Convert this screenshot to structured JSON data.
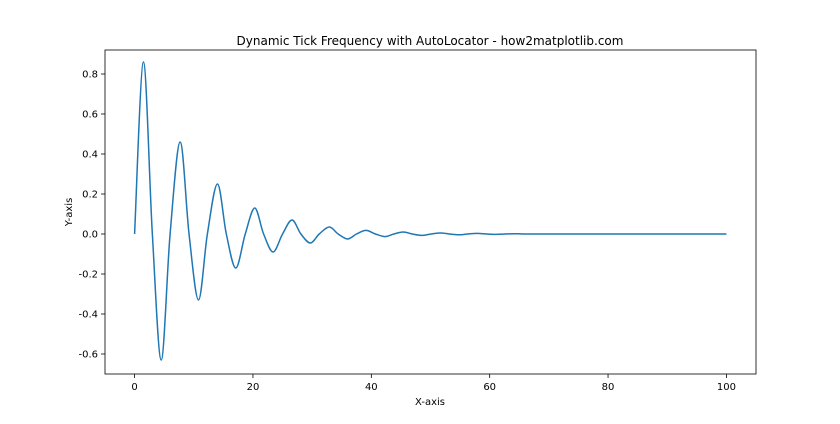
{
  "chart_data": {
    "type": "line",
    "title": "Dynamic Tick Frequency with AutoLocator - how2matplotlib.com",
    "xlabel": "X-axis",
    "ylabel": "Y-axis",
    "xlim": [
      -5,
      105
    ],
    "ylim": [
      -0.7,
      0.92
    ],
    "xticks": [
      0,
      20,
      40,
      60,
      80,
      100
    ],
    "xtick_labels": [
      "0",
      "20",
      "40",
      "60",
      "80",
      "100"
    ],
    "yticks": [
      -0.6,
      -0.4,
      -0.2,
      0.0,
      0.2,
      0.4,
      0.6,
      0.8
    ],
    "ytick_labels": [
      "-0.6",
      "-0.4",
      "-0.2",
      "0.0",
      "0.2",
      "0.4",
      "0.6",
      "0.8"
    ],
    "grid": false,
    "series": [
      {
        "color": "#1f77b4",
        "x": [
          0,
          1.5,
          3,
          4.5,
          6,
          7.7,
          9.2,
          10.8,
          12.3,
          14,
          15.5,
          17.1,
          18.7,
          20.3,
          21.8,
          23.4,
          25,
          26.6,
          28.1,
          29.7,
          31.2,
          32.9,
          34.4,
          36,
          37.5,
          39.1,
          40.7,
          42.3,
          43.8,
          45.4,
          46.9,
          48.5,
          50.1,
          51.7,
          53.2,
          54.8,
          56.3,
          57.9,
          59.5,
          61.1,
          62.6,
          64.2,
          65.7,
          70,
          80,
          90,
          100
        ],
        "y": [
          0.0,
          0.86,
          0.0,
          -0.63,
          0.0,
          0.46,
          0.0,
          -0.33,
          0.0,
          0.25,
          0.0,
          -0.17,
          0.0,
          0.13,
          0.0,
          -0.09,
          0.0,
          0.07,
          0.0,
          -0.045,
          0.0,
          0.035,
          0.0,
          -0.025,
          0.0,
          0.018,
          0.0,
          -0.013,
          0.0,
          0.01,
          0.0,
          -0.007,
          0.0,
          0.005,
          0.0,
          -0.004,
          0.0,
          0.003,
          0.0,
          -0.002,
          0.0,
          0.0015,
          0.0,
          0.0,
          0.0,
          0.0,
          0.0
        ]
      }
    ]
  }
}
